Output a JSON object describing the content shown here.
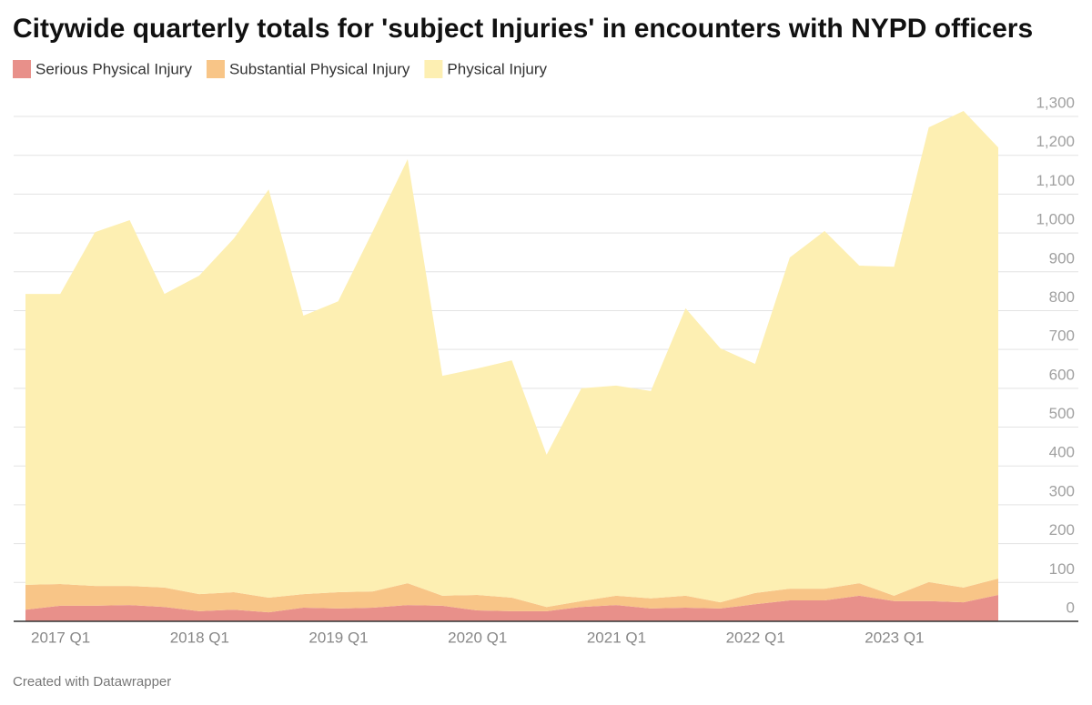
{
  "chart_data": {
    "type": "stacked-area",
    "title": "Citywide quarterly totals for 'subject Injuries' in encounters with NYPD officers",
    "footer": "Created with Datawrapper",
    "categories": [
      "2017 Q1",
      null,
      null,
      null,
      "2018 Q1",
      null,
      null,
      null,
      "2019 Q1",
      null,
      null,
      null,
      "2020 Q1",
      null,
      null,
      null,
      "2021 Q1",
      null,
      null,
      null,
      "2022 Q1",
      null,
      null,
      null,
      "2023 Q1",
      null,
      null,
      null,
      null
    ],
    "series": [
      {
        "name": "Serious Physical Injury",
        "color": "#e8908a",
        "values": [
          30,
          40,
          40,
          42,
          37,
          26,
          30,
          23,
          35,
          33,
          35,
          42,
          40,
          28,
          26,
          26,
          37,
          42,
          33,
          35,
          33,
          44,
          54,
          54,
          66,
          52,
          52,
          49,
          68
        ]
      },
      {
        "name": "Substantial Physical Injury",
        "color": "#f8c587",
        "values": [
          64,
          56,
          51,
          49,
          50,
          44,
          45,
          38,
          35,
          42,
          42,
          56,
          26,
          40,
          35,
          11,
          15,
          24,
          26,
          31,
          16,
          29,
          30,
          30,
          32,
          14,
          49,
          38,
          42
        ]
      },
      {
        "name": "Physical Injury",
        "color": "#fdefb2",
        "values": [
          749,
          747,
          911,
          942,
          756,
          820,
          911,
          1051,
          717,
          749,
          928,
          1092,
          566,
          583,
          611,
          392,
          548,
          541,
          534,
          740,
          654,
          590,
          853,
          921,
          818,
          847,
          1171,
          1227,
          1110
        ]
      }
    ],
    "ylim": [
      0,
      1300
    ],
    "yticks": [
      0,
      100,
      200,
      300,
      400,
      500,
      600,
      700,
      800,
      900,
      {
        "value": 1000,
        "label": "1,000"
      },
      {
        "value": 1100,
        "label": "1,100"
      },
      {
        "value": 1200,
        "label": "1,200"
      },
      {
        "value": 1300,
        "label": "1,300"
      }
    ],
    "grid": true
  }
}
